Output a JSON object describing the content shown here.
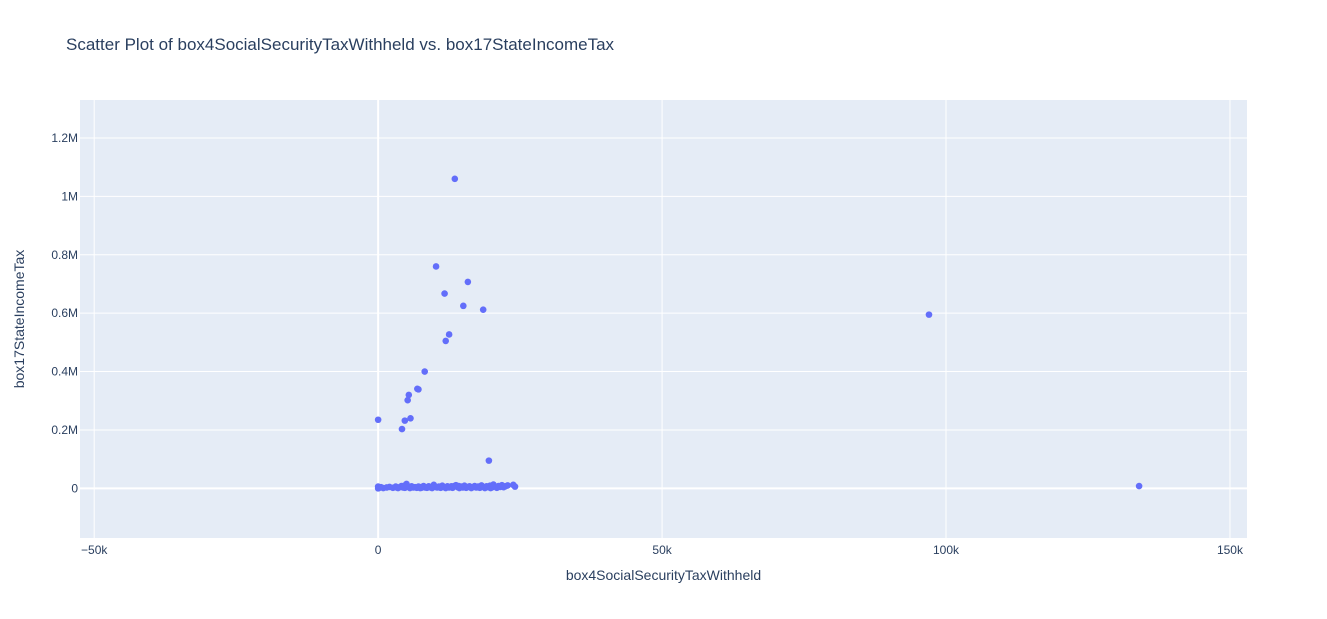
{
  "chart_data": {
    "type": "scatter",
    "title": "Scatter Plot of box4SocialSecurityTaxWithheld vs. box17StateIncomeTax",
    "xlabel": "box4SocialSecurityTaxWithheld",
    "ylabel": "box17StateIncomeTax",
    "xlim": [
      -52500,
      153000
    ],
    "ylim": [
      -170000,
      1330000
    ],
    "x_ticks": [
      -50000,
      0,
      50000,
      100000,
      150000
    ],
    "x_tick_labels": [
      "−50k",
      "0",
      "50k",
      "100k",
      "150k"
    ],
    "y_ticks": [
      0,
      200000,
      400000,
      600000,
      800000,
      1000000,
      1200000
    ],
    "y_tick_labels": [
      "0",
      "0.2M",
      "0.4M",
      "0.6M",
      "0.8M",
      "1M",
      "1.2M"
    ],
    "grid": true,
    "colors": {
      "marker": "#636efa",
      "plot_bg": "#e5ecf6",
      "grid": "#ffffff",
      "text": "#2a3f5f"
    },
    "series": [
      {
        "x": [
          13500,
          10200,
          15800,
          11700,
          15000,
          18500,
          97000,
          12500,
          11900,
          8200,
          6900,
          7100,
          5400,
          5200,
          5700,
          0,
          4700,
          4200,
          19500,
          134000,
          0,
          0,
          200,
          500,
          900,
          1500,
          2000,
          2600,
          3100,
          3500,
          3800,
          4100,
          4400,
          4700,
          5000,
          5300,
          5600,
          5900,
          6200,
          6500,
          6800,
          7100,
          7400,
          7700,
          8000,
          8300,
          8600,
          8900,
          9200,
          9500,
          9800,
          10100,
          10400,
          10700,
          11000,
          11300,
          11600,
          11900,
          12200,
          12500,
          12800,
          13100,
          13400,
          13700,
          14000,
          14300,
          14600,
          14900,
          15200,
          15500,
          15800,
          16100,
          16400,
          16700,
          17000,
          17300,
          17600,
          17900,
          18200,
          18500,
          18800,
          19100,
          19400,
          19700,
          20000,
          20300,
          20600,
          20900,
          21200,
          21500,
          21800,
          22100,
          22400,
          23800,
          24100,
          3300,
          5100,
          7600,
          10900,
          14200,
          17500,
          20100,
          22800,
          9300,
          12900,
          16800,
          19800,
          4600,
          8700,
          13300
        ],
        "y": [
          1060000,
          760000,
          707000,
          667000,
          625000,
          612000,
          595000,
          527000,
          505000,
          400000,
          341000,
          339000,
          320000,
          302000,
          240000,
          235000,
          232000,
          203000,
          95000,
          8000,
          6000,
          0,
          2000,
          4000,
          1000,
          3000,
          5000,
          2000,
          6000,
          1000,
          4000,
          8000,
          3000,
          2000,
          15000,
          5000,
          1000,
          7000,
          3000,
          4000,
          2000,
          6000,
          1000,
          5000,
          8000,
          3000,
          2000,
          7000,
          4000,
          1000,
          12000,
          5000,
          3000,
          6000,
          2000,
          9000,
          4000,
          1000,
          7000,
          3000,
          5000,
          2000,
          8000,
          11000,
          4000,
          1000,
          6000,
          3000,
          9000,
          2000,
          5000,
          7000,
          1000,
          4000,
          8000,
          3000,
          6000,
          2000,
          10000,
          5000,
          1000,
          7000,
          4000,
          9000,
          3000,
          13000,
          6000,
          2000,
          8000,
          5000,
          11000,
          4000,
          7000,
          12000,
          6000,
          3000,
          9000,
          2000,
          5000,
          8000,
          4000,
          6000,
          10000,
          3000,
          7000,
          5000,
          1000,
          9000,
          4000,
          6000
        ]
      }
    ]
  }
}
